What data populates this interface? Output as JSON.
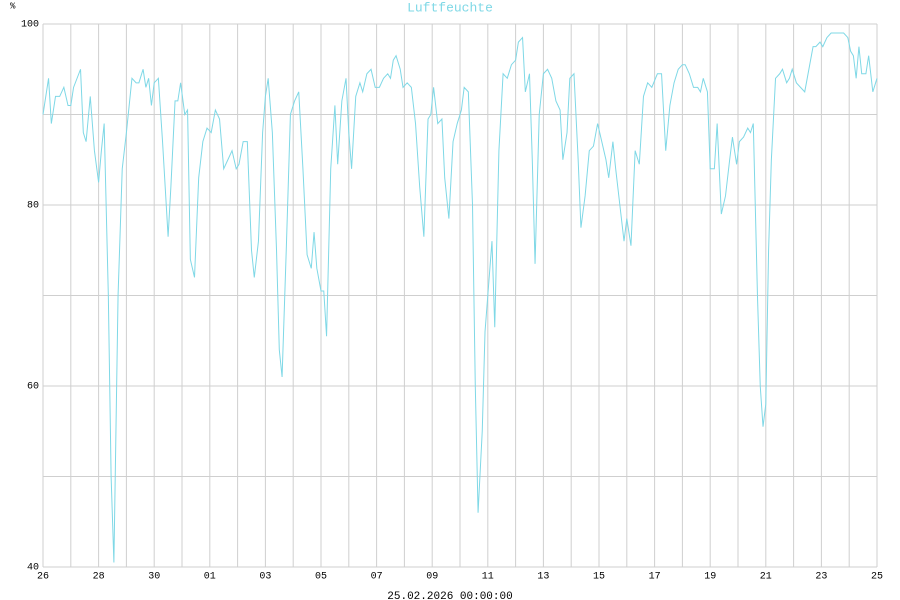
{
  "chart_data": {
    "type": "line",
    "title": "Luftfeuchte",
    "ylabel": "%",
    "xlabel": "25.02.2026 00:00:00",
    "color": "#7fd8e6",
    "grid": true,
    "xlim": [
      0,
      30
    ],
    "ylim": [
      40,
      100
    ],
    "yticks": [
      40,
      60,
      80,
      100
    ],
    "ygrid": [
      40,
      50,
      60,
      70,
      80,
      90,
      100
    ],
    "xgrid": [
      0,
      1,
      2,
      3,
      4,
      5,
      6,
      7,
      8,
      9,
      10,
      11,
      12,
      13,
      14,
      15,
      16,
      17,
      18,
      19,
      20,
      21,
      22,
      23,
      24,
      25,
      26,
      27,
      28,
      29,
      30
    ],
    "xticks": [
      {
        "value": 0,
        "label": "26"
      },
      {
        "value": 2,
        "label": "28"
      },
      {
        "value": 4,
        "label": "30"
      },
      {
        "value": 6,
        "label": "01"
      },
      {
        "value": 8,
        "label": "03"
      },
      {
        "value": 10,
        "label": "05"
      },
      {
        "value": 12,
        "label": "07"
      },
      {
        "value": 14,
        "label": "09"
      },
      {
        "value": 16,
        "label": "11"
      },
      {
        "value": 18,
        "label": "13"
      },
      {
        "value": 20,
        "label": "15"
      },
      {
        "value": 22,
        "label": "17"
      },
      {
        "value": 24,
        "label": "19"
      },
      {
        "value": 26,
        "label": "21"
      },
      {
        "value": 28,
        "label": "23"
      },
      {
        "value": 30,
        "label": "25"
      }
    ],
    "x": [
      0,
      0.2,
      0.3,
      0.45,
      0.6,
      0.75,
      0.9,
      1.0,
      1.1,
      1.35,
      1.45,
      1.55,
      1.7,
      1.85,
      2.0,
      2.1,
      2.2,
      2.35,
      2.45,
      2.55,
      2.7,
      2.85,
      3.0,
      3.1,
      3.2,
      3.35,
      3.45,
      3.6,
      3.7,
      3.8,
      3.9,
      4.0,
      4.15,
      4.3,
      4.5,
      4.6,
      4.75,
      4.85,
      4.95,
      5.1,
      5.2,
      5.3,
      5.45,
      5.6,
      5.75,
      5.9,
      6.05,
      6.2,
      6.35,
      6.5,
      6.65,
      6.8,
      6.95,
      7.05,
      7.2,
      7.35,
      7.5,
      7.6,
      7.75,
      7.9,
      8.0,
      8.1,
      8.25,
      8.4,
      8.5,
      8.6,
      8.75,
      8.9,
      9.05,
      9.2,
      9.35,
      9.5,
      9.65,
      9.75,
      9.85,
      10.0,
      10.1,
      10.2,
      10.35,
      10.5,
      10.6,
      10.75,
      10.9,
      11.0,
      11.1,
      11.25,
      11.4,
      11.5,
      11.65,
      11.8,
      11.95,
      12.1,
      12.25,
      12.4,
      12.5,
      12.6,
      12.7,
      12.85,
      12.95,
      13.1,
      13.25,
      13.4,
      13.55,
      13.7,
      13.85,
      13.95,
      14.05,
      14.2,
      14.35,
      14.45,
      14.6,
      14.75,
      14.9,
      15.05,
      15.15,
      15.3,
      15.45,
      15.55,
      15.65,
      15.8,
      15.9,
      16.0,
      16.15,
      16.25,
      16.4,
      16.55,
      16.7,
      16.85,
      17.0,
      17.1,
      17.25,
      17.35,
      17.5,
      17.6,
      17.7,
      17.85,
      18.0,
      18.15,
      18.3,
      18.45,
      18.6,
      18.7,
      18.85,
      18.95,
      19.1,
      19.25,
      19.35,
      19.5,
      19.65,
      19.8,
      19.95,
      20.1,
      20.25,
      20.35,
      20.5,
      20.6,
      20.75,
      20.9,
      21.0,
      21.15,
      21.3,
      21.45,
      21.6,
      21.75,
      21.9,
      22.1,
      22.25,
      22.4,
      22.55,
      22.7,
      22.85,
      23.0,
      23.1,
      23.25,
      23.4,
      23.55,
      23.65,
      23.75,
      23.9,
      24.0,
      24.15,
      24.25,
      24.4,
      24.55,
      24.7,
      24.8,
      24.95,
      25.05,
      25.2,
      25.35,
      25.45,
      25.55,
      25.7,
      25.8,
      25.9,
      26.0,
      26.1,
      26.2,
      26.35,
      26.5,
      26.6,
      26.75,
      26.85,
      26.95,
      27.1,
      27.25,
      27.4,
      27.55,
      27.7,
      27.8,
      27.95,
      28.05,
      28.2,
      28.35,
      28.8,
      28.95,
      29.05,
      29.15,
      29.25,
      29.35,
      29.45,
      29.6,
      29.7,
      29.85,
      29.95,
      30.0
    ],
    "values": [
      90,
      94,
      89,
      92,
      92,
      93,
      91,
      91,
      93,
      95,
      88,
      87,
      92,
      86,
      82.5,
      86,
      89,
      70,
      50,
      40.5,
      70,
      84,
      88,
      91,
      94,
      93.5,
      93.5,
      95,
      93,
      94,
      91,
      93.5,
      94,
      87,
      76.5,
      82,
      91.5,
      91.5,
      93.5,
      90,
      90.5,
      74,
      72,
      83,
      87,
      88.5,
      88,
      90.5,
      89.5,
      84,
      85,
      86,
      84,
      84.5,
      87,
      87,
      75,
      72,
      76,
      88,
      92,
      94,
      88,
      75,
      64,
      61,
      75,
      90,
      91.5,
      92.5,
      84,
      74.5,
      73,
      77,
      73,
      70.5,
      70.5,
      65.5,
      84,
      91,
      84.5,
      91.5,
      94,
      88,
      84,
      92,
      93.5,
      92.5,
      94.5,
      95,
      93,
      93,
      94,
      94.5,
      94,
      96,
      96.5,
      95,
      93,
      93.5,
      93,
      89,
      82,
      76.5,
      89.5,
      90,
      93,
      89,
      89.5,
      83,
      78.5,
      87,
      89,
      90.5,
      93,
      92.5,
      80,
      60,
      46,
      55,
      66,
      70,
      76,
      66.5,
      86,
      94.5,
      94,
      95.5,
      96,
      98,
      98.5,
      92.5,
      94.5,
      85,
      73.5,
      90,
      94.5,
      95,
      94,
      91.5,
      90.5,
      85,
      88,
      94,
      94.5,
      85,
      77.5,
      81,
      86,
      86.5,
      89,
      87,
      85,
      83,
      87,
      84,
      80,
      76,
      78.5,
      75.5,
      86,
      84.5,
      92,
      93.5,
      93,
      94.5,
      94.5,
      86,
      91,
      93.5,
      95,
      95.5,
      95.5,
      94.5,
      93,
      93,
      92.5,
      94,
      92.5,
      84,
      84,
      89,
      79,
      81,
      85,
      87.5,
      84.5,
      87,
      87.5,
      88.5,
      88,
      89,
      70,
      60,
      55.5,
      58,
      75,
      85,
      94,
      94.5,
      95,
      93.5,
      94,
      95,
      93.5,
      93,
      92.5,
      95,
      97.5,
      97.5,
      98,
      97.5,
      98.5,
      99,
      99,
      98.5,
      97,
      96.5,
      94,
      97.5,
      94.5,
      94.5,
      96.5,
      92.5,
      93.5,
      94
    ]
  }
}
